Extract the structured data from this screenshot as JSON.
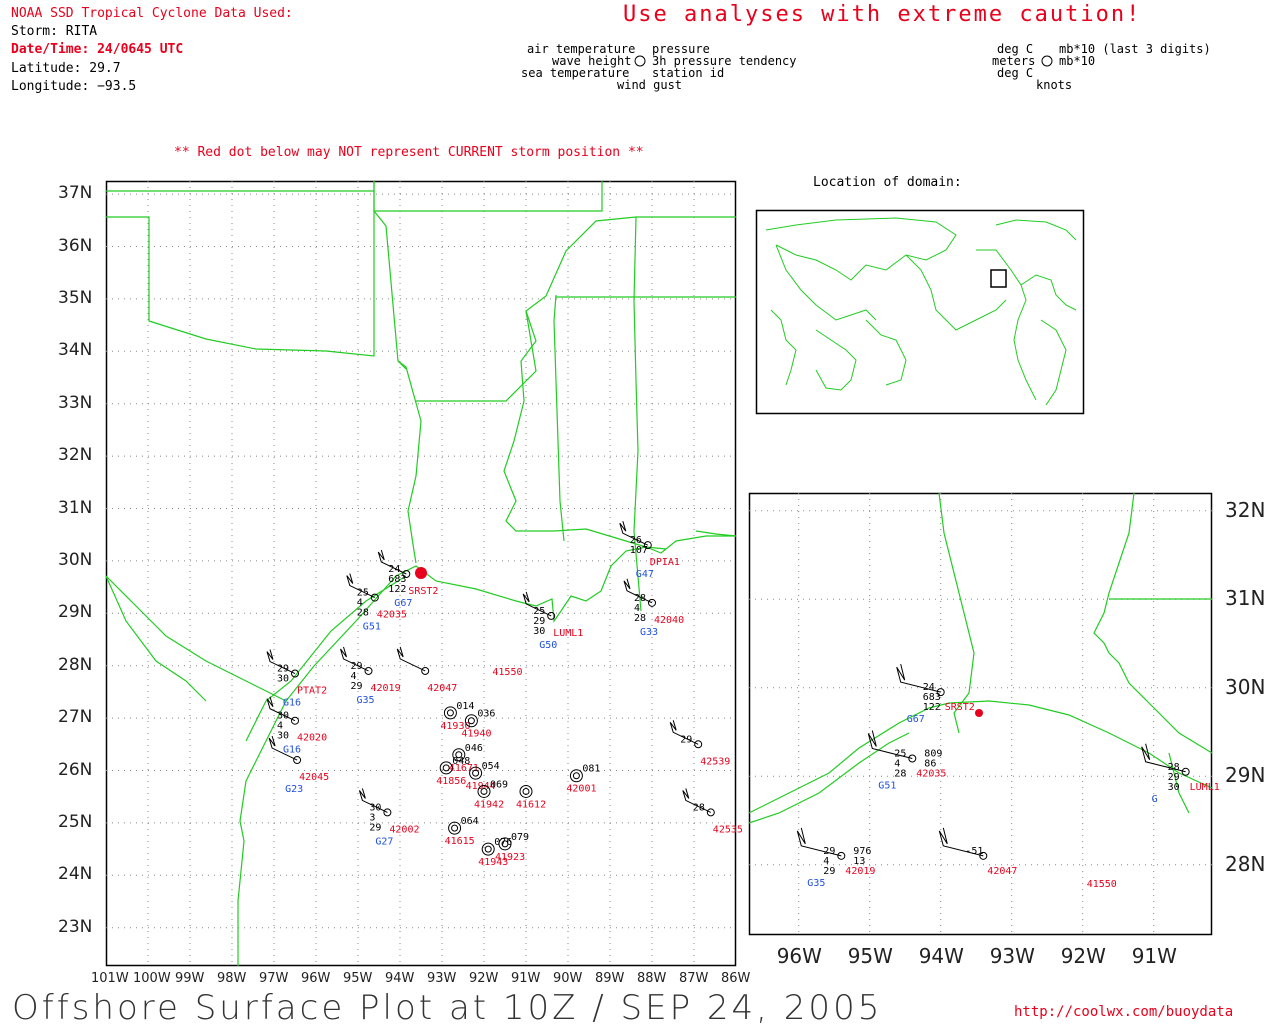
{
  "header": {
    "source": "NOAA SSD Tropical Cyclone Data Used:",
    "storm": "Storm: RITA",
    "datetime": "Date/Time: 24/0645 UTC",
    "latitude": "Latitude: 29.7",
    "longitude": "Longitude: −93.5",
    "caution": "Use analyses with extreme caution!",
    "note": "** Red dot below may NOT represent CURRENT storm position **"
  },
  "legend_left": {
    "air_temperature": "air temperature",
    "pressure": "pressure",
    "wave_height": "wave height",
    "tendency": "3h pressure tendency",
    "sea_temperature": "sea temperature",
    "station_id": "station id",
    "wind_gust": "wind gust"
  },
  "legend_right": {
    "deg_c_1": "deg C",
    "mb": "mb*10 (last 3 digits)",
    "meters": "meters",
    "mb2": "mb*10",
    "deg_c_2": "deg C",
    "knots": "knots"
  },
  "inset_title": "Location of domain:",
  "main_map": {
    "lat_labels": [
      "37N",
      "36N",
      "35N",
      "34N",
      "33N",
      "32N",
      "31N",
      "30N",
      "29N",
      "28N",
      "27N",
      "26N",
      "25N",
      "24N",
      "23N"
    ],
    "lon_labels": [
      "101W",
      "100W",
      "99W",
      "98W",
      "97W",
      "96W",
      "95W",
      "94W",
      "93W",
      "92W",
      "91W",
      "90W",
      "89W",
      "88W",
      "87W",
      "86W"
    ]
  },
  "zoom_map": {
    "lat_labels": [
      "32N",
      "31N",
      "30N",
      "29N",
      "28N"
    ],
    "lon_labels": [
      "96W",
      "95W",
      "94W",
      "93W",
      "92W",
      "91W"
    ]
  },
  "stations_main": [
    {
      "lon": -93.85,
      "lat": 29.75,
      "ids": [
        "24",
        "683",
        "122"
      ],
      "id": "SRST2",
      "g": "G67"
    },
    {
      "lon": -94.6,
      "lat": 29.3,
      "ids": [
        "25",
        "4",
        "28"
      ],
      "id": "42035",
      "g": "G51"
    },
    {
      "lon": -88.1,
      "lat": 30.3,
      "ids": [
        "26",
        "107"
      ],
      "id": "DPIA1",
      "g": "G47"
    },
    {
      "lon": -88.0,
      "lat": 29.2,
      "ids": [
        "28",
        "4",
        "28"
      ],
      "id": "42040",
      "g": "G33"
    },
    {
      "lon": -90.4,
      "lat": 28.95,
      "ids": [
        "25",
        "29",
        "30"
      ],
      "id": "LUML1",
      "g": "G50"
    },
    {
      "lon": -96.5,
      "lat": 27.85,
      "ids": [
        "29",
        "30"
      ],
      "id": "PTAT2",
      "g": "G16"
    },
    {
      "lon": -94.75,
      "lat": 27.9,
      "ids": [
        "29",
        "4",
        "29"
      ],
      "id": "42019",
      "g": "G35"
    },
    {
      "lon": -93.4,
      "lat": 27.9,
      "ids": [],
      "id": "42047",
      "g": ""
    },
    {
      "lon": -96.5,
      "lat": 26.95,
      "ids": [
        "30",
        "4",
        "30"
      ],
      "id": "42020",
      "g": "G16"
    },
    {
      "lon": -96.45,
      "lat": 26.2,
      "ids": [],
      "id": "42045",
      "g": "G23"
    },
    {
      "lon": -94.3,
      "lat": 25.2,
      "ids": [
        "30",
        "3",
        "29"
      ],
      "id": "42002",
      "g": "G27"
    },
    {
      "lon": -86.9,
      "lat": 26.5,
      "ids": [
        "29"
      ],
      "id": "42539",
      "g": ""
    },
    {
      "lon": -86.6,
      "lat": 25.2,
      "ids": [
        "28"
      ],
      "id": "42535",
      "g": ""
    }
  ],
  "stations_zoom": [
    {
      "ids": [
        "24",
        "683",
        "122"
      ],
      "id": "SRST2",
      "g": "G67"
    },
    {
      "ids": [
        "25",
        "4",
        "28",
        "809",
        "86"
      ],
      "id": "42035",
      "g": "G51"
    },
    {
      "ids": [
        "29",
        "4",
        "29",
        "976",
        "13"
      ],
      "id": "42019",
      "g": "G35"
    },
    {
      "ids": [
        "-51"
      ],
      "id": "42047",
      "g": ""
    },
    {
      "ids": [],
      "id": "41550",
      "g": ""
    },
    {
      "ids": [
        "28",
        "29",
        "30"
      ],
      "id": "LUML1",
      "g": "G"
    }
  ],
  "footer": {
    "title": "Offshore Surface Plot at 10Z / SEP 24, 2005",
    "url": "http://coolwx.com/buoydata"
  }
}
